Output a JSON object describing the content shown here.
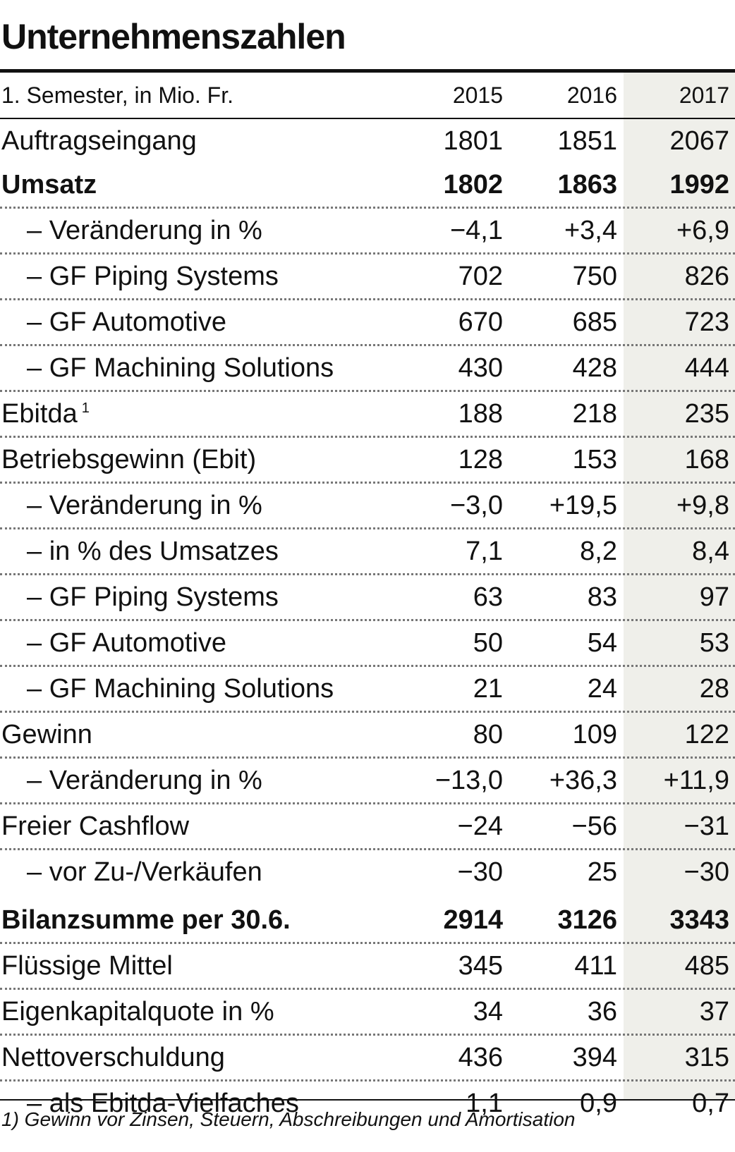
{
  "title": "Unternehmenszahlen",
  "header": {
    "label": "1. Semester, in Mio. Fr.",
    "years": [
      "2015",
      "2016",
      "2017"
    ]
  },
  "rows": [
    {
      "label": "Auftragseingang",
      "values": [
        "1801",
        "1851",
        "2067"
      ]
    },
    {
      "label": "Umsatz",
      "values": [
        "1802",
        "1863",
        "1992"
      ]
    },
    {
      "label": "– Veränderung in %",
      "values": [
        "−4,1",
        "+3,4",
        "+6,9"
      ]
    },
    {
      "label": "– GF Piping Systems",
      "values": [
        "702",
        "750",
        "826"
      ]
    },
    {
      "label": "– GF Automotive",
      "values": [
        "670",
        "685",
        "723"
      ]
    },
    {
      "label": "– GF Machining Solutions",
      "values": [
        "430",
        "428",
        "444"
      ]
    },
    {
      "label": "Ebitda",
      "sup": "1",
      "values": [
        "188",
        "218",
        "235"
      ]
    },
    {
      "label": "Betriebsgewinn (Ebit)",
      "values": [
        "128",
        "153",
        "168"
      ]
    },
    {
      "label": "– Veränderung in %",
      "values": [
        "−3,0",
        "+19,5",
        "+9,8"
      ]
    },
    {
      "label": "– in % des Umsatzes",
      "values": [
        "7,1",
        "8,2",
        "8,4"
      ]
    },
    {
      "label": "– GF Piping Systems",
      "values": [
        "63",
        "83",
        "97"
      ]
    },
    {
      "label": "– GF Automotive",
      "values": [
        "50",
        "54",
        "53"
      ]
    },
    {
      "label": "– GF Machining Solutions",
      "values": [
        "21",
        "24",
        "28"
      ]
    },
    {
      "label": "Gewinn",
      "values": [
        "80",
        "109",
        "122"
      ]
    },
    {
      "label": "– Veränderung in %",
      "values": [
        "−13,0",
        "+36,3",
        "+11,9"
      ]
    },
    {
      "label": "Freier Cashflow",
      "values": [
        "−24",
        "−56",
        "−31"
      ]
    },
    {
      "label": "– vor Zu-/Verkäufen",
      "values": [
        "−30",
        "25",
        "−30"
      ]
    },
    {
      "label": "Bilanzsumme per 30.6.",
      "values": [
        "2914",
        "3126",
        "3343"
      ]
    },
    {
      "label": "Flüssige Mittel",
      "values": [
        "345",
        "411",
        "485"
      ]
    },
    {
      "label": "Eigenkapitalquote in %",
      "values": [
        "34",
        "36",
        "37"
      ]
    },
    {
      "label": "Nettoverschuldung",
      "values": [
        "436",
        "394",
        "315"
      ]
    },
    {
      "label": "– als Ebitda-Vielfaches",
      "values": [
        "1,1",
        "0,9",
        "0,7"
      ]
    }
  ],
  "footnote": "1) Gewinn vor Zinsen, Steuern, Abschreibungen und Amortisation",
  "colors": {
    "text": "#111111",
    "highlight_column": "#efefea",
    "dots": "#777777"
  }
}
